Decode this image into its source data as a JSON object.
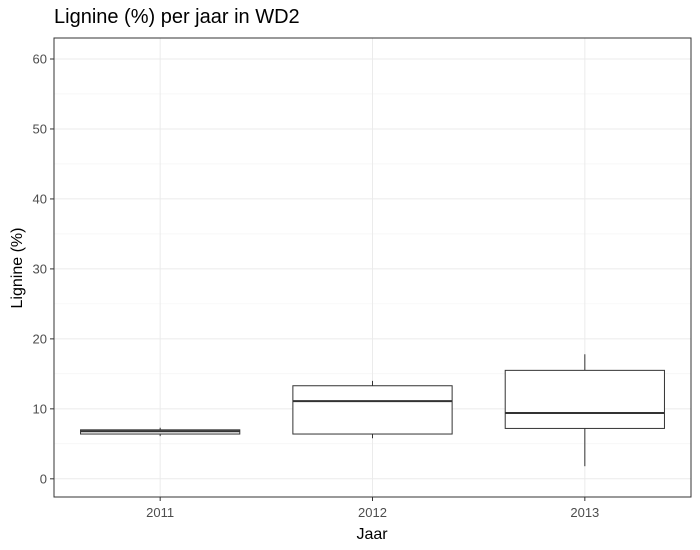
{
  "chart_data": {
    "type": "box",
    "title": "Lignine (%) per jaar in WD2",
    "xlabel": "Jaar",
    "ylabel": "Lignine (%)",
    "ylim": [
      -2.6,
      63
    ],
    "y_ticks": [
      0,
      10,
      20,
      30,
      40,
      50,
      60
    ],
    "grid": true,
    "categories": [
      "2011",
      "2012",
      "2013"
    ],
    "boxes": [
      {
        "category": "2011",
        "min": 6.1,
        "q1": 6.4,
        "median": 6.8,
        "q3": 7.0,
        "max": 7.3
      },
      {
        "category": "2012",
        "min": 5.8,
        "q1": 6.4,
        "median": 11.1,
        "q3": 13.3,
        "max": 14.0
      },
      {
        "category": "2013",
        "min": 1.8,
        "q1": 7.2,
        "median": 9.4,
        "q3": 15.5,
        "max": 17.8
      }
    ]
  }
}
